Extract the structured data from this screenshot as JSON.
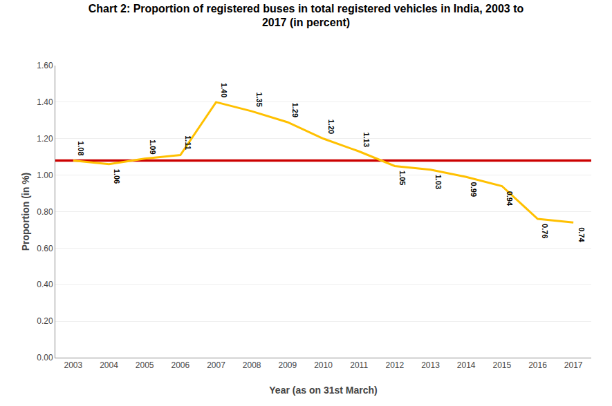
{
  "chart_data": {
    "type": "line",
    "title": "Chart 2: Proportion of registered buses in total registered vehicles in India, 2003 to\n2017 (in percent)",
    "xlabel": "Year (as on 31st March)",
    "ylabel": "Proportion (in %)",
    "x": [
      2003,
      2004,
      2005,
      2006,
      2007,
      2008,
      2009,
      2010,
      2011,
      2012,
      2013,
      2014,
      2015,
      2016,
      2017
    ],
    "values": [
      1.08,
      1.06,
      1.09,
      1.11,
      1.4,
      1.35,
      1.29,
      1.2,
      1.13,
      1.05,
      1.03,
      0.99,
      0.94,
      0.76,
      0.74
    ],
    "value_labels": [
      "1.08",
      "1.06",
      "1.09",
      "1.11",
      "1.40",
      "1.35",
      "1.29",
      "1.20",
      "1.13",
      "1.05",
      "1.03",
      "0.99",
      "0.94",
      "0.76",
      "0.74"
    ],
    "color": "#FFC000",
    "reference_line": {
      "value": 1.08,
      "color": "#CC0000"
    },
    "xlim": [
      2002.5,
      2017.5
    ],
    "xticks": [
      2003,
      2004,
      2005,
      2006,
      2007,
      2008,
      2009,
      2010,
      2011,
      2012,
      2013,
      2014,
      2015,
      2016,
      2017
    ],
    "ylim": [
      0.0,
      1.6
    ],
    "yticks": [
      {
        "value": 0.0,
        "label": "0.00"
      },
      {
        "value": 0.2,
        "label": "0.20"
      },
      {
        "value": 0.4,
        "label": "0.40"
      },
      {
        "value": 0.6,
        "label": "0.60"
      },
      {
        "value": 0.8,
        "label": "0.80"
      },
      {
        "value": 1.0,
        "label": "1.00"
      },
      {
        "value": 1.2,
        "label": "1.20"
      },
      {
        "value": 1.4,
        "label": "1.40"
      },
      {
        "value": 1.6,
        "label": "1.60"
      }
    ],
    "grid": "y",
    "data_labels": true
  }
}
